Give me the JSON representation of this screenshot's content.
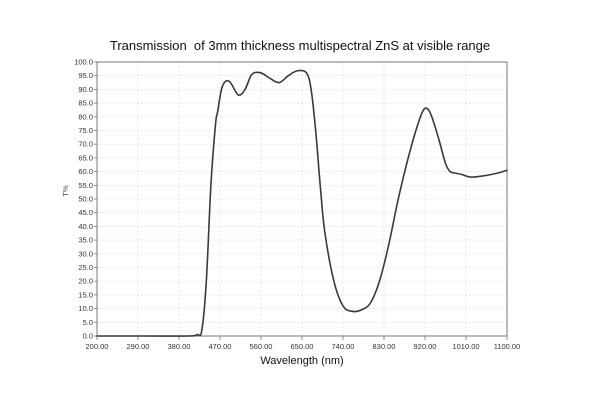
{
  "chart_data": {
    "type": "line",
    "title": "Transmission  of 3mm thickness multispectral ZnS at visible range",
    "xlabel": "Wavelength (nm)",
    "ylabel": "T%",
    "xlim": [
      200,
      1100
    ],
    "ylim": [
      0,
      100
    ],
    "grid": true,
    "x_ticks": [
      "200.00",
      "290.00",
      "380.00",
      "470.00",
      "560.00",
      "650.00",
      "740.00",
      "830.00",
      "920.00",
      "1010.00",
      "1100.00"
    ],
    "y_ticks": [
      "0.0",
      "5.0",
      "10.0",
      "15.0",
      "20.0",
      "25.0",
      "30.0",
      "35.0",
      "40.0",
      "45.0",
      "50.0",
      "55.0",
      "60.0",
      "65.0",
      "70.0",
      "75.0",
      "80.0",
      "85.0",
      "90.0",
      "95.0",
      "100.0"
    ],
    "series": [
      {
        "color": "#3a3a3a",
        "x": [
          200,
          300,
          400,
          420,
          430,
          440,
          450,
          460,
          465,
          475,
          490,
          510,
          525,
          540,
          560,
          580,
          600,
          620,
          640,
          660,
          670,
          680,
          690,
          700,
          720,
          740,
          760,
          780,
          800,
          820,
          840,
          860,
          880,
          900,
          915,
          925,
          935,
          950,
          965,
          975,
          985,
          1000,
          1020,
          1050,
          1080,
          1100
        ],
        "y": [
          0,
          0,
          0,
          0.5,
          2,
          20,
          55,
          77,
          82,
          91,
          93,
          88,
          90,
          95.5,
          96,
          94,
          92.5,
          95,
          96.8,
          96,
          90,
          75,
          55,
          38,
          20,
          11,
          9,
          9.5,
          12,
          20,
          33,
          49,
          63,
          75,
          82,
          83,
          80,
          72,
          63,
          60,
          59.5,
          59,
          58,
          58.5,
          59.5,
          60.5
        ]
      }
    ]
  }
}
